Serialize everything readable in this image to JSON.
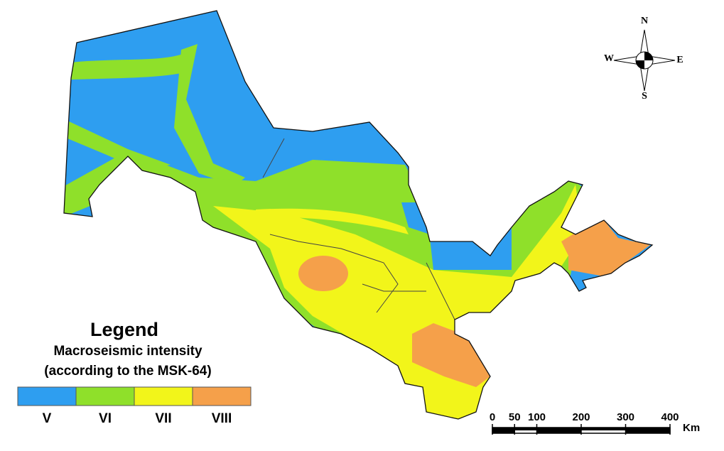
{
  "legend": {
    "title": "Legend",
    "subtitle": "Macroseismic intensity",
    "note": "(according to the MSK-64)",
    "classes": [
      {
        "label": "V",
        "color": "#2e9ef0"
      },
      {
        "label": "VI",
        "color": "#8fe02a"
      },
      {
        "label": "VII",
        "color": "#f2f51a"
      },
      {
        "label": "VIII",
        "color": "#f5a04a"
      }
    ]
  },
  "compass": {
    "north": "N",
    "south": "S",
    "west": "W",
    "east": "E"
  },
  "scale_bar": {
    "ticks": [
      0,
      50,
      100,
      200,
      300,
      400
    ],
    "unit": "Km"
  }
}
